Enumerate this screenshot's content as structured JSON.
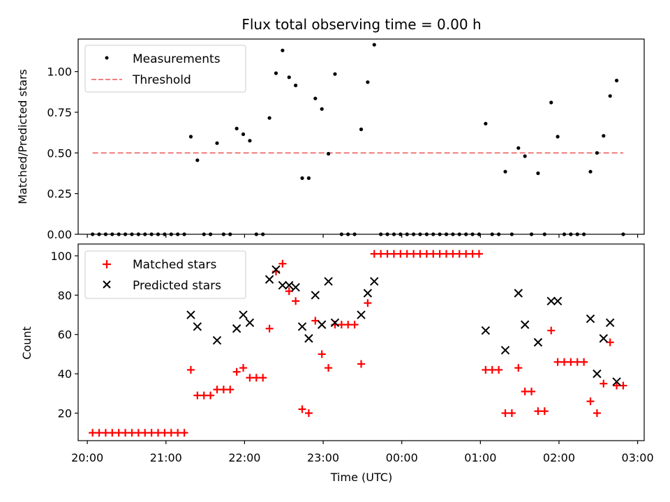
{
  "figure_title": "Flux total observing time = 0.00 h",
  "chart_data": [
    {
      "type": "scatter",
      "ylabel": "Matched/Predicted stars",
      "ylim": [
        0,
        1.2
      ],
      "yticks": [
        0.0,
        0.25,
        0.5,
        0.75,
        1.0
      ],
      "ytick_labels": [
        "0.00",
        "0.25",
        "0.50",
        "0.75",
        "1.00"
      ],
      "legend_position": "top-left",
      "series": [
        {
          "name": "Measurements",
          "marker": "dot",
          "color": "#000000",
          "points": [
            [
              "20:04",
              0
            ],
            [
              "20:09",
              0
            ],
            [
              "20:14",
              0
            ],
            [
              "20:19",
              0
            ],
            [
              "20:24",
              0
            ],
            [
              "20:29",
              0
            ],
            [
              "20:34",
              0
            ],
            [
              "20:39",
              0
            ],
            [
              "20:44",
              0
            ],
            [
              "20:49",
              0
            ],
            [
              "20:54",
              0
            ],
            [
              "20:59",
              0
            ],
            [
              "21:04",
              0
            ],
            [
              "21:09",
              0
            ],
            [
              "21:14",
              0
            ],
            [
              "21:19",
              0.6
            ],
            [
              "21:24",
              0.455
            ],
            [
              "21:29",
              0
            ],
            [
              "21:34",
              0
            ],
            [
              "21:39",
              0.56
            ],
            [
              "21:44",
              0
            ],
            [
              "21:49",
              0
            ],
            [
              "21:54",
              0.65
            ],
            [
              "21:59",
              0.615
            ],
            [
              "22:04",
              0.575
            ],
            [
              "22:09",
              0
            ],
            [
              "22:14",
              0
            ],
            [
              "22:19",
              0.715
            ],
            [
              "22:24",
              0.99
            ],
            [
              "22:29",
              1.13
            ],
            [
              "22:34",
              0.965
            ],
            [
              "22:39",
              0.915
            ],
            [
              "22:44",
              0.345
            ],
            [
              "22:49",
              0.345
            ],
            [
              "22:54",
              0.835
            ],
            [
              "22:59",
              0.77
            ],
            [
              "23:04",
              0.495
            ],
            [
              "23:09",
              0.985
            ],
            [
              "23:14",
              0
            ],
            [
              "23:19",
              0
            ],
            [
              "23:24",
              0
            ],
            [
              "23:29",
              0.645
            ],
            [
              "23:34",
              0.935
            ],
            [
              "23:39",
              1.165
            ],
            [
              "23:44",
              0
            ],
            [
              "23:49",
              0
            ],
            [
              "23:54",
              0
            ],
            [
              "23:59",
              0
            ],
            [
              "00:04",
              0
            ],
            [
              "00:09",
              0
            ],
            [
              "00:14",
              0
            ],
            [
              "00:19",
              0
            ],
            [
              "00:24",
              0
            ],
            [
              "00:29",
              0
            ],
            [
              "00:34",
              0
            ],
            [
              "00:39",
              0
            ],
            [
              "00:44",
              0
            ],
            [
              "00:49",
              0
            ],
            [
              "00:54",
              0
            ],
            [
              "00:59",
              0
            ],
            [
              "01:04",
              0.68
            ],
            [
              "01:09",
              0
            ],
            [
              "01:14",
              0
            ],
            [
              "01:19",
              0.385
            ],
            [
              "01:24",
              0
            ],
            [
              "01:29",
              0.53
            ],
            [
              "01:34",
              0.48
            ],
            [
              "01:39",
              0
            ],
            [
              "01:44",
              0.375
            ],
            [
              "01:49",
              0
            ],
            [
              "01:54",
              0.81
            ],
            [
              "01:59",
              0.6
            ],
            [
              "02:04",
              0
            ],
            [
              "02:09",
              0
            ],
            [
              "02:14",
              0
            ],
            [
              "02:19",
              0
            ],
            [
              "02:24",
              0.385
            ],
            [
              "02:29",
              0.5
            ],
            [
              "02:34",
              0.605
            ],
            [
              "02:39",
              0.85
            ],
            [
              "02:44",
              0.945
            ],
            [
              "02:49",
              0
            ]
          ]
        },
        {
          "name": "Threshold",
          "marker": "dashed-line",
          "color": "#f08080",
          "points": [
            [
              "20:04",
              0.5
            ],
            [
              "02:49",
              0.5
            ]
          ]
        }
      ]
    },
    {
      "type": "scatter",
      "xlabel": "Time (UTC)",
      "ylabel": "Count",
      "ylim": [
        6,
        106
      ],
      "yticks": [
        20,
        40,
        60,
        80,
        100
      ],
      "ytick_labels": [
        "20",
        "40",
        "60",
        "80",
        "100"
      ],
      "xlim": [
        "19:53",
        "03:05"
      ],
      "xticks": [
        "20:00",
        "21:00",
        "22:00",
        "23:00",
        "00:00",
        "01:00",
        "02:00",
        "03:00"
      ],
      "legend_position": "top-left",
      "series": [
        {
          "name": "Matched stars",
          "marker": "plus",
          "color": "#ff0000",
          "points": [
            [
              "20:04",
              10
            ],
            [
              "20:09",
              10
            ],
            [
              "20:14",
              10
            ],
            [
              "20:19",
              10
            ],
            [
              "20:24",
              10
            ],
            [
              "20:29",
              10
            ],
            [
              "20:34",
              10
            ],
            [
              "20:39",
              10
            ],
            [
              "20:44",
              10
            ],
            [
              "20:49",
              10
            ],
            [
              "20:54",
              10
            ],
            [
              "20:59",
              10
            ],
            [
              "21:04",
              10
            ],
            [
              "21:09",
              10
            ],
            [
              "21:14",
              10
            ],
            [
              "21:19",
              42
            ],
            [
              "21:24",
              29
            ],
            [
              "21:29",
              29
            ],
            [
              "21:34",
              29
            ],
            [
              "21:39",
              32
            ],
            [
              "21:44",
              32
            ],
            [
              "21:49",
              32
            ],
            [
              "21:54",
              41
            ],
            [
              "21:59",
              43
            ],
            [
              "22:04",
              38
            ],
            [
              "22:09",
              38
            ],
            [
              "22:14",
              38
            ],
            [
              "22:19",
              63
            ],
            [
              "22:24",
              92
            ],
            [
              "22:29",
              96
            ],
            [
              "22:34",
              82
            ],
            [
              "22:39",
              77
            ],
            [
              "22:44",
              22
            ],
            [
              "22:49",
              20
            ],
            [
              "22:54",
              67
            ],
            [
              "22:59",
              50
            ],
            [
              "23:04",
              43
            ],
            [
              "23:09",
              65
            ],
            [
              "23:14",
              65
            ],
            [
              "23:19",
              65
            ],
            [
              "23:24",
              65
            ],
            [
              "23:29",
              45
            ],
            [
              "23:34",
              76
            ],
            [
              "23:39",
              101
            ],
            [
              "23:44",
              101
            ],
            [
              "23:49",
              101
            ],
            [
              "23:54",
              101
            ],
            [
              "23:59",
              101
            ],
            [
              "00:04",
              101
            ],
            [
              "00:09",
              101
            ],
            [
              "00:14",
              101
            ],
            [
              "00:19",
              101
            ],
            [
              "00:24",
              101
            ],
            [
              "00:29",
              101
            ],
            [
              "00:34",
              101
            ],
            [
              "00:39",
              101
            ],
            [
              "00:44",
              101
            ],
            [
              "00:49",
              101
            ],
            [
              "00:54",
              101
            ],
            [
              "00:59",
              101
            ],
            [
              "01:04",
              42
            ],
            [
              "01:09",
              42
            ],
            [
              "01:14",
              42
            ],
            [
              "01:19",
              20
            ],
            [
              "01:24",
              20
            ],
            [
              "01:29",
              43
            ],
            [
              "01:34",
              31
            ],
            [
              "01:39",
              31
            ],
            [
              "01:44",
              21
            ],
            [
              "01:49",
              21
            ],
            [
              "01:54",
              62
            ],
            [
              "01:59",
              46
            ],
            [
              "02:04",
              46
            ],
            [
              "02:09",
              46
            ],
            [
              "02:14",
              46
            ],
            [
              "02:19",
              46
            ],
            [
              "02:24",
              26
            ],
            [
              "02:29",
              20
            ],
            [
              "02:34",
              35
            ],
            [
              "02:39",
              56
            ],
            [
              "02:44",
              34
            ],
            [
              "02:49",
              34
            ]
          ]
        },
        {
          "name": "Predicted stars",
          "marker": "x",
          "color": "#000000",
          "points": [
            [
              "21:19",
              70
            ],
            [
              "21:24",
              64
            ],
            [
              "21:39",
              57
            ],
            [
              "21:54",
              63
            ],
            [
              "21:59",
              70
            ],
            [
              "22:04",
              66
            ],
            [
              "22:19",
              88
            ],
            [
              "22:24",
              93
            ],
            [
              "22:29",
              85
            ],
            [
              "22:34",
              85
            ],
            [
              "22:39",
              84
            ],
            [
              "22:44",
              64
            ],
            [
              "22:49",
              58
            ],
            [
              "22:54",
              80
            ],
            [
              "22:59",
              65
            ],
            [
              "23:04",
              87
            ],
            [
              "23:09",
              66
            ],
            [
              "23:29",
              70
            ],
            [
              "23:34",
              81
            ],
            [
              "23:39",
              87
            ],
            [
              "01:04",
              62
            ],
            [
              "01:19",
              52
            ],
            [
              "01:29",
              81
            ],
            [
              "01:34",
              65
            ],
            [
              "01:44",
              56
            ],
            [
              "01:54",
              77
            ],
            [
              "01:59",
              77
            ],
            [
              "02:24",
              68
            ],
            [
              "02:29",
              40
            ],
            [
              "02:34",
              58
            ],
            [
              "02:39",
              66
            ],
            [
              "02:44",
              36
            ]
          ]
        }
      ]
    }
  ]
}
